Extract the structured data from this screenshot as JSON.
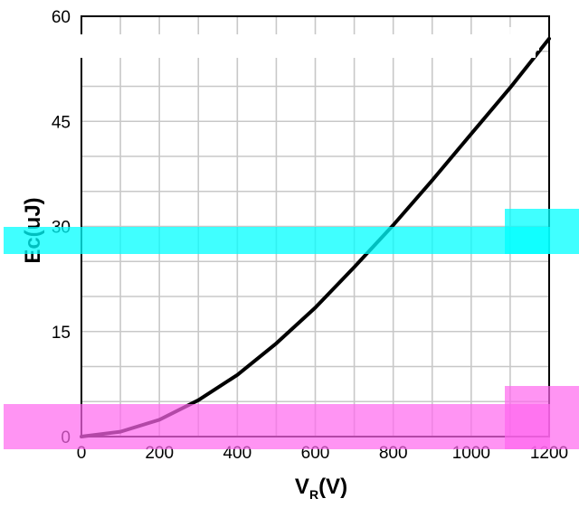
{
  "chart_data": {
    "type": "line",
    "xlabel": "V",
    "xlabel_subscript": "R",
    "xlabel_unit": "(V)",
    "ylabel": "Ec(uJ)",
    "xlim": [
      0,
      1200
    ],
    "ylim": [
      0,
      60
    ],
    "x_ticks": [
      0,
      200,
      400,
      600,
      800,
      1000,
      1200
    ],
    "x_tick_labels": [
      "0",
      "200",
      "400",
      "600",
      "800",
      "1000",
      "1200"
    ],
    "y_ticks": [
      0,
      15,
      30,
      45,
      60
    ],
    "y_tick_labels": [
      "0",
      "15",
      "30",
      "45",
      "60"
    ],
    "grid": true,
    "grid_x_step": 100,
    "grid_y_step": 5,
    "series": [
      {
        "color": "#000000",
        "x": [
          0,
          100,
          200,
          300,
          400,
          500,
          600,
          700,
          800,
          900,
          1000,
          1100,
          1200
        ],
        "y": [
          0,
          0.7,
          2.4,
          5.2,
          8.8,
          13.3,
          18.4,
          24.2,
          30.2,
          36.6,
          43.2,
          49.8,
          56.8
        ]
      }
    ],
    "overlays": [
      {
        "name": "cyan-highlight-band",
        "color": "#00ffff"
      },
      {
        "name": "magenta-highlight-band",
        "color": "#ff66ee"
      }
    ]
  }
}
